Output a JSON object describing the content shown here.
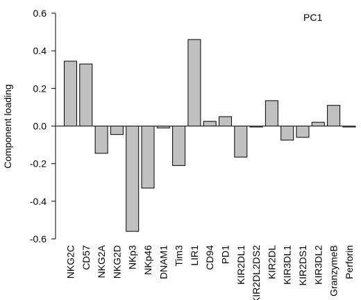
{
  "chart_data": {
    "type": "bar",
    "title": "PC1",
    "xlabel": "",
    "ylabel": "Component loading",
    "ylim": [
      -0.6,
      0.6
    ],
    "yticks": [
      "0.6",
      "0.4",
      "0.2",
      "0.0",
      "-0.2",
      "-0.4",
      "-0.6"
    ],
    "ytick_values": [
      0.6,
      0.4,
      0.2,
      0.0,
      -0.2,
      -0.4,
      -0.6
    ],
    "categories": [
      "NKG2C",
      "CD57",
      "NKG2A",
      "NKG2D",
      "NKp3",
      "NKp46",
      "DNAM1",
      "Tim3",
      "LIR1",
      "CD94",
      "PD1",
      "KIR2DL1",
      "KIR2DL2DS2",
      "KIR2DL",
      "KIR3DL1",
      "KIR2DS1",
      "KIR3DL2",
      "GranzymeB",
      "Perforin"
    ],
    "values": [
      0.345,
      0.33,
      -0.145,
      -0.045,
      -0.56,
      -0.33,
      -0.01,
      -0.21,
      0.46,
      0.025,
      0.05,
      -0.165,
      -0.005,
      0.135,
      -0.075,
      -0.06,
      0.02,
      0.11,
      -0.005
    ],
    "bar_color": "#c0c0c0",
    "grid": false,
    "legend": "none"
  }
}
